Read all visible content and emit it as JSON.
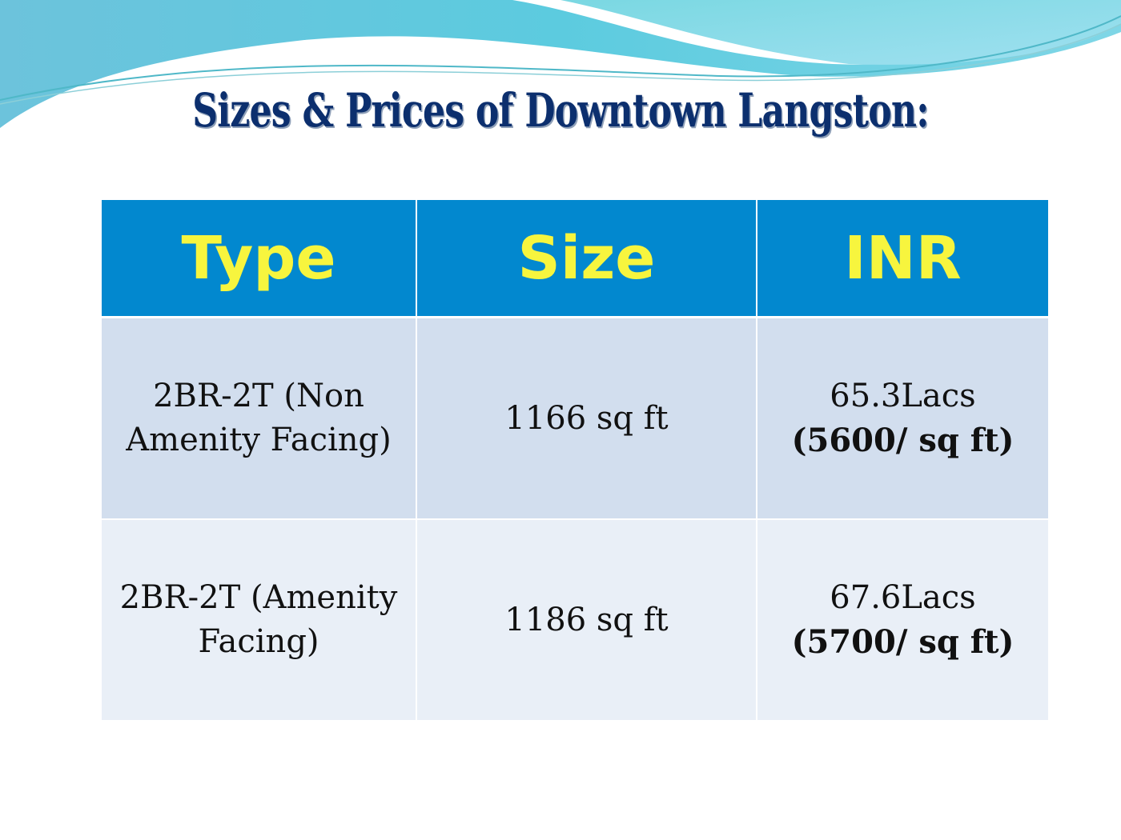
{
  "title": "Sizes & Prices of Downtown Langston:",
  "table": {
    "headers": [
      "Type",
      "Size",
      "INR"
    ],
    "rows": [
      {
        "type": "2BR-2T (Non Amenity Facing)",
        "size": "1166 sq ft",
        "price": "65.3Lacs",
        "rate": "(5600/ sq ft)"
      },
      {
        "type": "2BR-2T (Amenity Facing)",
        "size": "1186 sq ft",
        "price": "67.6Lacs",
        "rate": "(5700/ sq ft)"
      }
    ]
  },
  "colors": {
    "header_bg": "#0288cf",
    "header_text": "#f7f53e",
    "title": "#0c2f6e",
    "row1": "#d2deee",
    "row2": "#e9eff7"
  }
}
